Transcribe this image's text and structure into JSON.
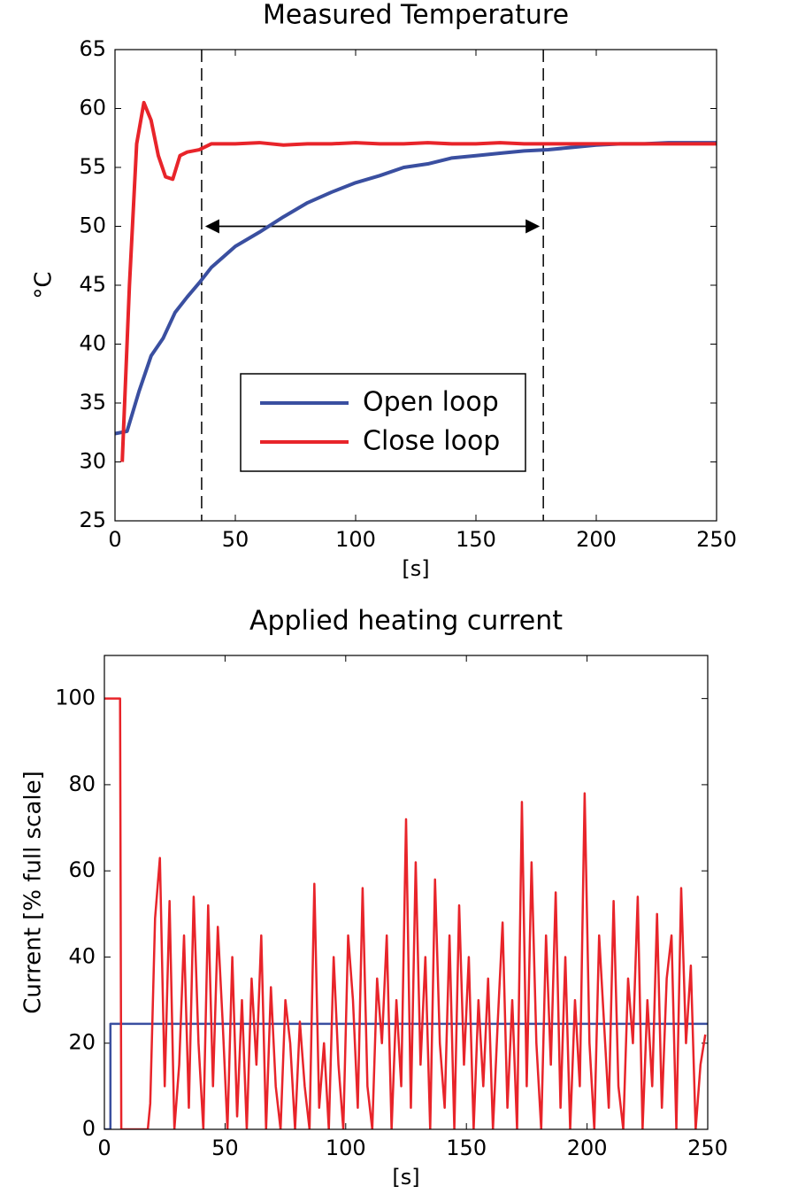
{
  "chart_data": [
    {
      "type": "line",
      "title": "Measured Temperature",
      "ylabel": "°C",
      "xlabel": "[s]",
      "xlim": [
        0,
        250
      ],
      "ylim": [
        25,
        65
      ],
      "xticks": [
        0,
        50,
        100,
        150,
        200,
        250
      ],
      "yticks": [
        25,
        30,
        35,
        40,
        45,
        50,
        55,
        60,
        65
      ],
      "legend": "center",
      "vlines": [
        36,
        178
      ],
      "arrow_y": 50,
      "series": [
        {
          "name": "Open loop",
          "color": "#3a4fa0",
          "x": [
            0,
            5,
            10,
            15,
            20,
            25,
            30,
            35,
            40,
            50,
            60,
            70,
            80,
            90,
            100,
            110,
            120,
            130,
            140,
            150,
            160,
            170,
            180,
            190,
            200,
            210,
            220,
            230,
            240,
            250
          ],
          "values": [
            32.4,
            32.6,
            36,
            39,
            40.5,
            42.7,
            44,
            45.2,
            46.5,
            48.3,
            49.5,
            50.8,
            52,
            52.9,
            53.7,
            54.3,
            55,
            55.3,
            55.8,
            56,
            56.2,
            56.4,
            56.5,
            56.7,
            56.9,
            57,
            57,
            57.1,
            57.1,
            57.1
          ]
        },
        {
          "name": "Close loop",
          "color": "#e8242a",
          "x": [
            3,
            6,
            9,
            12,
            15,
            18,
            21,
            24,
            27,
            30,
            35,
            40,
            50,
            60,
            70,
            80,
            90,
            100,
            110,
            120,
            130,
            140,
            150,
            160,
            170,
            180,
            190,
            200,
            210,
            220,
            230,
            240,
            250
          ],
          "values": [
            30,
            45,
            57,
            60.5,
            59,
            56,
            54.2,
            54,
            56,
            56.3,
            56.5,
            57,
            57,
            57.1,
            56.9,
            57,
            57,
            57.1,
            57,
            57,
            57.1,
            57,
            57,
            57.1,
            57,
            57,
            57,
            57,
            57,
            57,
            57,
            57,
            57
          ]
        }
      ]
    },
    {
      "type": "line",
      "title": "Applied heating current",
      "ylabel": "Current [% full scale]",
      "xlabel": "[s]",
      "xlim": [
        0,
        250
      ],
      "ylim": [
        0,
        110
      ],
      "xticks": [
        0,
        50,
        100,
        150,
        200,
        250
      ],
      "yticks": [
        0,
        20,
        40,
        60,
        80,
        100
      ],
      "series": [
        {
          "name": "Open loop",
          "color": "#3a4fa0",
          "x": [
            0,
            2.5,
            2.5,
            250
          ],
          "values": [
            0,
            0,
            24.5,
            24.5
          ]
        },
        {
          "name": "Close loop",
          "color": "#e8242a",
          "x": [
            0,
            6.5,
            7,
            18,
            19,
            21,
            23,
            25,
            27,
            29,
            31,
            33,
            35,
            37,
            39,
            41,
            43,
            45,
            47,
            49,
            51,
            53,
            55,
            57,
            59,
            61,
            63,
            65,
            67,
            69,
            71,
            73,
            75,
            77,
            79,
            81,
            83,
            85,
            87,
            89,
            91,
            93,
            95,
            97,
            99,
            101,
            103,
            105,
            107,
            109,
            111,
            113,
            115,
            117,
            119,
            121,
            123,
            125,
            127,
            129,
            131,
            133,
            135,
            137,
            139,
            141,
            143,
            145,
            147,
            149,
            151,
            153,
            155,
            157,
            159,
            161,
            163,
            165,
            167,
            169,
            171,
            173,
            175,
            177,
            179,
            181,
            183,
            185,
            187,
            189,
            191,
            193,
            195,
            197,
            199,
            201,
            203,
            205,
            207,
            209,
            211,
            213,
            215,
            217,
            219,
            221,
            223,
            225,
            227,
            229,
            231,
            233,
            235,
            237,
            239,
            241,
            243,
            245,
            247,
            249
          ],
          "values": [
            100,
            100,
            0,
            0,
            6,
            49,
            63,
            10,
            53,
            0,
            15,
            45,
            5,
            54,
            20,
            0,
            52,
            10,
            47,
            25,
            0,
            40,
            3,
            30,
            0,
            35,
            15,
            45,
            0,
            33,
            10,
            0,
            30,
            20,
            0,
            25,
            10,
            0,
            57,
            5,
            20,
            0,
            40,
            15,
            0,
            45,
            30,
            5,
            56,
            10,
            0,
            35,
            20,
            45,
            0,
            30,
            10,
            72,
            5,
            62,
            15,
            40,
            0,
            58,
            20,
            5,
            45,
            0,
            52,
            15,
            40,
            0,
            30,
            10,
            35,
            0,
            25,
            48,
            5,
            30,
            0,
            76,
            10,
            62,
            20,
            0,
            45,
            15,
            55,
            5,
            40,
            0,
            30,
            10,
            78,
            20,
            0,
            45,
            25,
            5,
            53,
            10,
            0,
            35,
            20,
            54,
            0,
            30,
            10,
            50,
            5,
            35,
            45,
            0,
            56,
            20,
            38,
            0,
            15,
            22
          ]
        }
      ]
    }
  ]
}
